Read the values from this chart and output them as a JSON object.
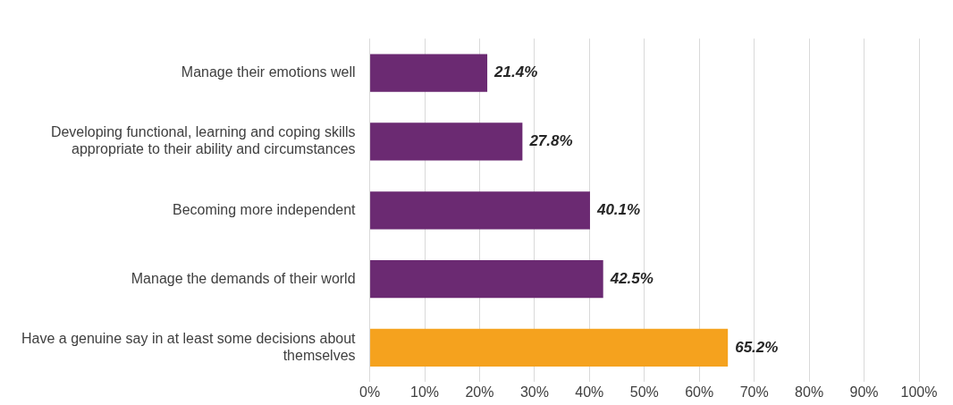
{
  "chart_data": {
    "type": "bar",
    "orientation": "horizontal",
    "categories": [
      "Manage their emotions well",
      "Developing functional, learning and coping skills appropriate to their ability and circumstances",
      "Becoming more independent",
      "Manage the demands of their world",
      "Have a genuine say in at least some decisions about themselves"
    ],
    "values": [
      21.4,
      27.8,
      40.1,
      42.5,
      65.2
    ],
    "colors": [
      "#6b2a72",
      "#6b2a72",
      "#6b2a72",
      "#6b2a72",
      "#f5a21e"
    ],
    "value_labels": [
      "21.4%",
      "27.8%",
      "40.1%",
      "42.5%",
      "65.2%"
    ],
    "xlim": [
      0,
      100
    ],
    "xticks": [
      {
        "value": 0,
        "label": "0%"
      },
      {
        "value": 10,
        "label": "10%"
      },
      {
        "value": 20,
        "label": "20%"
      },
      {
        "value": 30,
        "label": "30%"
      },
      {
        "value": 40,
        "label": "40%"
      },
      {
        "value": 50,
        "label": "50%"
      },
      {
        "value": 60,
        "label": "60%"
      },
      {
        "value": 70,
        "label": "70%"
      },
      {
        "value": 80,
        "label": "80%"
      },
      {
        "value": 90,
        "label": "90%"
      },
      {
        "value": 100,
        "label": "100%"
      }
    ],
    "grid": "x",
    "legend": false
  }
}
